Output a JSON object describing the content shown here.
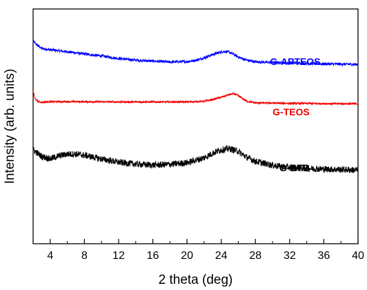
{
  "chart_data": {
    "type": "line",
    "xlabel": "2 theta (deg)",
    "ylabel": "Intensity (arb. units)",
    "xlim": [
      2,
      40
    ],
    "ylim": [
      0,
      1
    ],
    "xticks": [
      4,
      8,
      12,
      16,
      20,
      24,
      28,
      32,
      36,
      40
    ],
    "y_tick_labels": false,
    "grid": false,
    "series": [
      {
        "name": "G-APTEOS",
        "color": "#0000ff",
        "noise": 0.006,
        "x": [
          2.0,
          2.5,
          3.0,
          4.0,
          6.0,
          8.0,
          10.0,
          12.0,
          14.0,
          16.0,
          18.0,
          20.0,
          21.0,
          22.0,
          23.0,
          24.0,
          24.5,
          25.0,
          25.5,
          26.0,
          27.0,
          28.0,
          30.0,
          32.0,
          34.0,
          36.0,
          38.0,
          40.0
        ],
        "y": [
          0.864,
          0.845,
          0.832,
          0.826,
          0.818,
          0.808,
          0.8,
          0.789,
          0.782,
          0.778,
          0.774,
          0.776,
          0.781,
          0.792,
          0.806,
          0.817,
          0.819,
          0.815,
          0.806,
          0.795,
          0.782,
          0.775,
          0.772,
          0.77,
          0.768,
          0.766,
          0.765,
          0.764
        ]
      },
      {
        "name": "G-TEOS",
        "color": "#ee0000",
        "noise": 0.004,
        "x": [
          2.0,
          2.2,
          2.6,
          3.0,
          4.0,
          8.0,
          12.0,
          16.0,
          20.0,
          22.0,
          23.0,
          24.0,
          25.0,
          25.5,
          26.0,
          27.0,
          28.0,
          32.0,
          36.0,
          40.0
        ],
        "y": [
          0.65,
          0.62,
          0.605,
          0.603,
          0.605,
          0.605,
          0.604,
          0.604,
          0.604,
          0.607,
          0.614,
          0.624,
          0.636,
          0.639,
          0.63,
          0.607,
          0.6,
          0.598,
          0.597,
          0.596
        ]
      },
      {
        "name": "G-BTB",
        "color": "#000000",
        "noise": 0.014,
        "x": [
          2.0,
          3.0,
          4.0,
          5.0,
          6.0,
          7.0,
          8.0,
          10.0,
          12.0,
          14.0,
          16.0,
          18.0,
          20.0,
          22.0,
          23.0,
          24.0,
          25.0,
          26.0,
          27.0,
          28.0,
          30.0,
          32.0,
          34.0,
          36.0,
          38.0,
          40.0
        ],
        "y": [
          0.4,
          0.372,
          0.362,
          0.374,
          0.382,
          0.382,
          0.377,
          0.361,
          0.347,
          0.339,
          0.335,
          0.338,
          0.345,
          0.366,
          0.386,
          0.4,
          0.405,
          0.393,
          0.368,
          0.351,
          0.334,
          0.325,
          0.321,
          0.318,
          0.316,
          0.314
        ]
      }
    ]
  }
}
